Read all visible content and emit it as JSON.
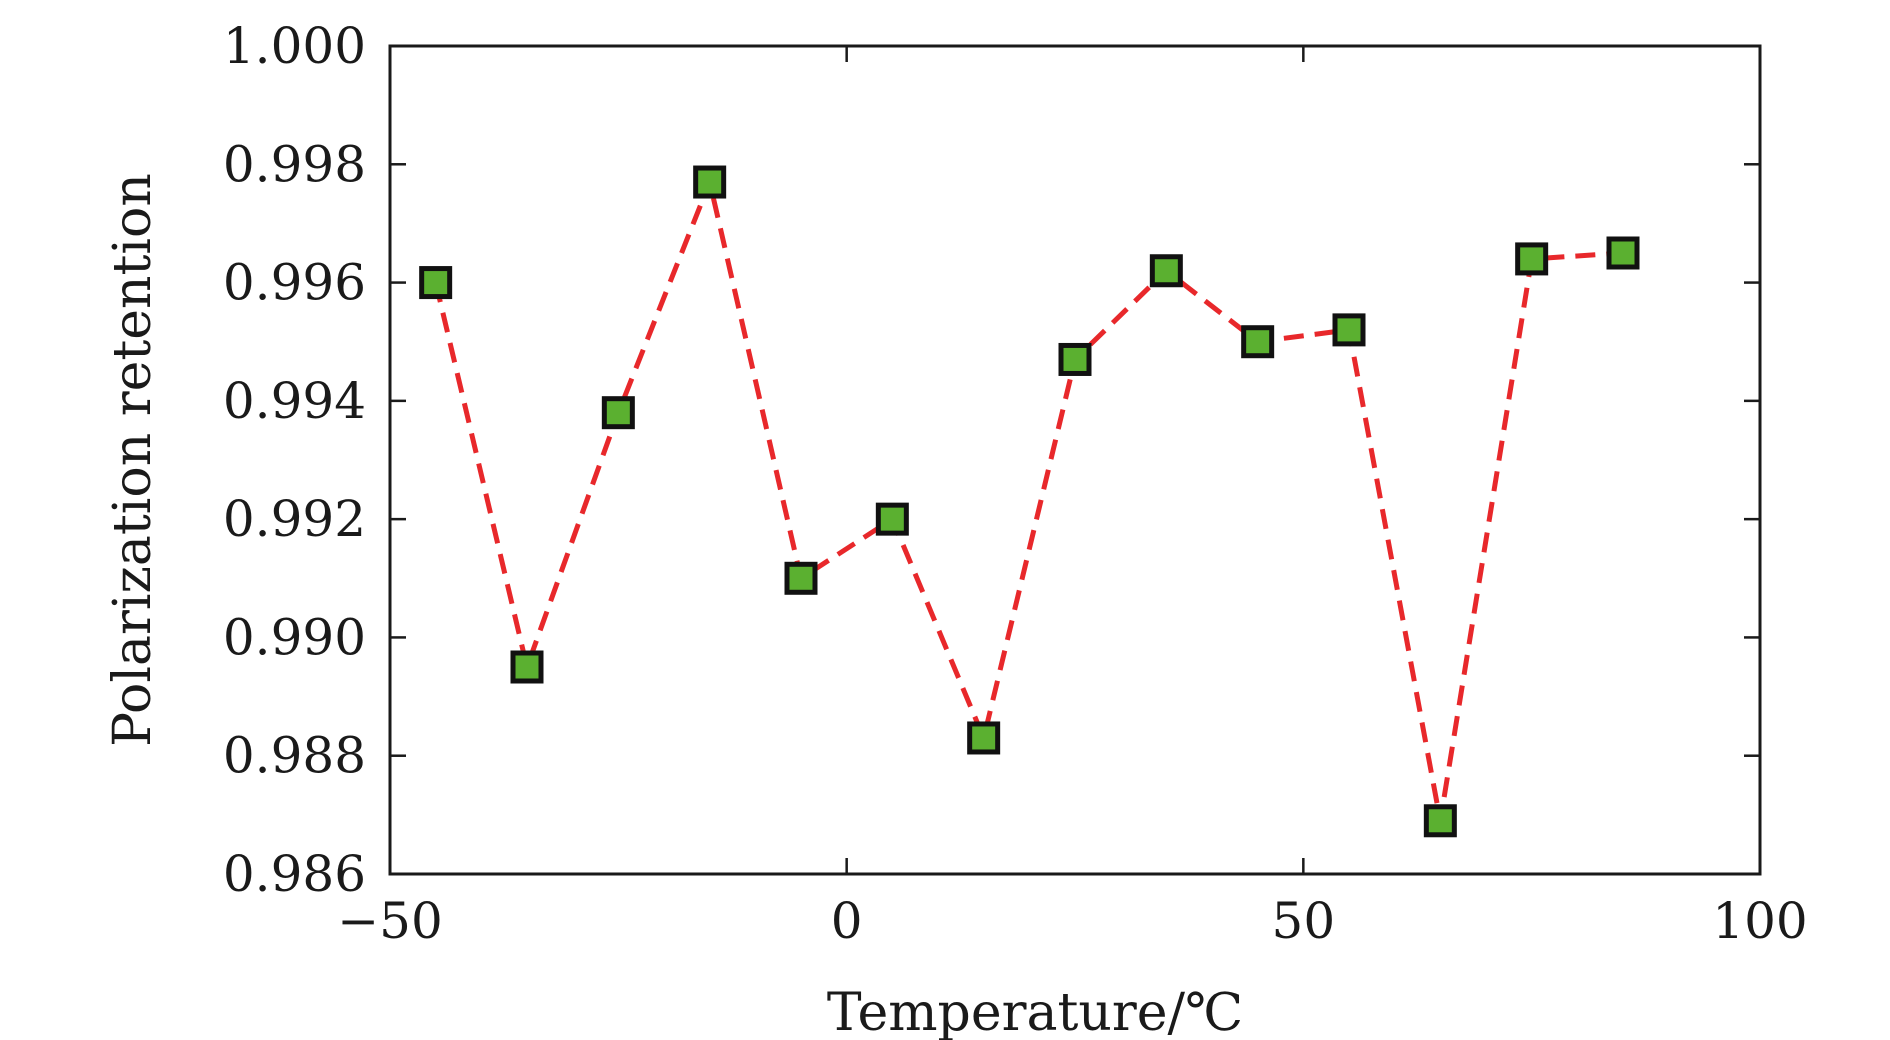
{
  "chart_data": {
    "type": "line",
    "title": "",
    "xlabel": "Temperature/℃",
    "ylabel": "Polarization retention",
    "xlim": [
      -50,
      100
    ],
    "ylim": [
      0.986,
      1.0
    ],
    "x_ticks": [
      -50,
      0,
      50,
      100
    ],
    "x_tick_labels": [
      "−50",
      "0",
      "50",
      "100"
    ],
    "y_ticks": [
      0.986,
      0.988,
      0.99,
      0.992,
      0.994,
      0.996,
      0.998,
      1.0
    ],
    "y_tick_labels": [
      "0.986",
      "0.988",
      "0.990",
      "0.992",
      "0.994",
      "0.996",
      "0.998",
      "1.000"
    ],
    "grid": false,
    "series": [
      {
        "x": [
          -45,
          -35,
          -25,
          -15,
          -5,
          5,
          15,
          25,
          35,
          45,
          55,
          65,
          75,
          85
        ],
        "values": [
          0.996,
          0.9895,
          0.9938,
          0.9977,
          0.991,
          0.992,
          0.9883,
          0.9947,
          0.9962,
          0.995,
          0.9952,
          0.9869,
          0.9964,
          0.9965
        ],
        "line_color": "#e8282b",
        "line_style": "dashed",
        "marker": "square",
        "marker_color": "#5bb030",
        "marker_edge_color": "#111111"
      }
    ]
  }
}
